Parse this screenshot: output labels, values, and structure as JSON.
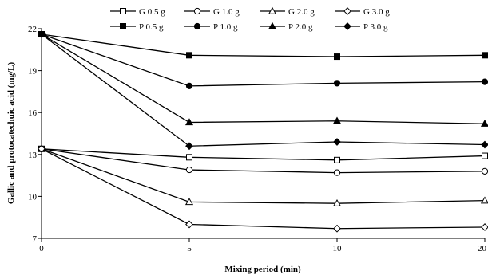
{
  "chart_data": {
    "type": "line",
    "xlabel": "Mixing period (min)",
    "ylabel": "Gallic and protocatechuic acid (mg/L)",
    "x_ticks": [
      "0",
      "5",
      "10",
      "20"
    ],
    "y_ticks": [
      "7",
      "10",
      "13",
      "16",
      "19",
      "22"
    ],
    "ylim": [
      7,
      22
    ],
    "legend_position": "top",
    "series": [
      {
        "name": "G 0.5 g",
        "marker": "square-open",
        "values": [
          13.4,
          12.8,
          12.6,
          12.9
        ]
      },
      {
        "name": "G 1.0 g",
        "marker": "circle-open",
        "values": [
          13.4,
          11.9,
          11.7,
          11.8
        ]
      },
      {
        "name": "G 2.0 g",
        "marker": "triangle-open",
        "values": [
          13.4,
          9.6,
          9.5,
          9.7
        ]
      },
      {
        "name": "G 3.0 g",
        "marker": "diamond-open",
        "values": [
          13.4,
          8.0,
          7.7,
          7.8
        ]
      },
      {
        "name": "P 0.5 g",
        "marker": "square-filled",
        "values": [
          21.6,
          20.1,
          20.0,
          20.1
        ]
      },
      {
        "name": "P 1.0 g",
        "marker": "circle-filled",
        "values": [
          21.6,
          17.9,
          18.1,
          18.2
        ]
      },
      {
        "name": "P 2.0 g",
        "marker": "triangle-filled",
        "values": [
          21.6,
          15.3,
          15.4,
          15.2
        ]
      },
      {
        "name": "P 3.0 g",
        "marker": "diamond-filled",
        "values": [
          21.6,
          13.6,
          13.9,
          13.7
        ]
      }
    ]
  }
}
